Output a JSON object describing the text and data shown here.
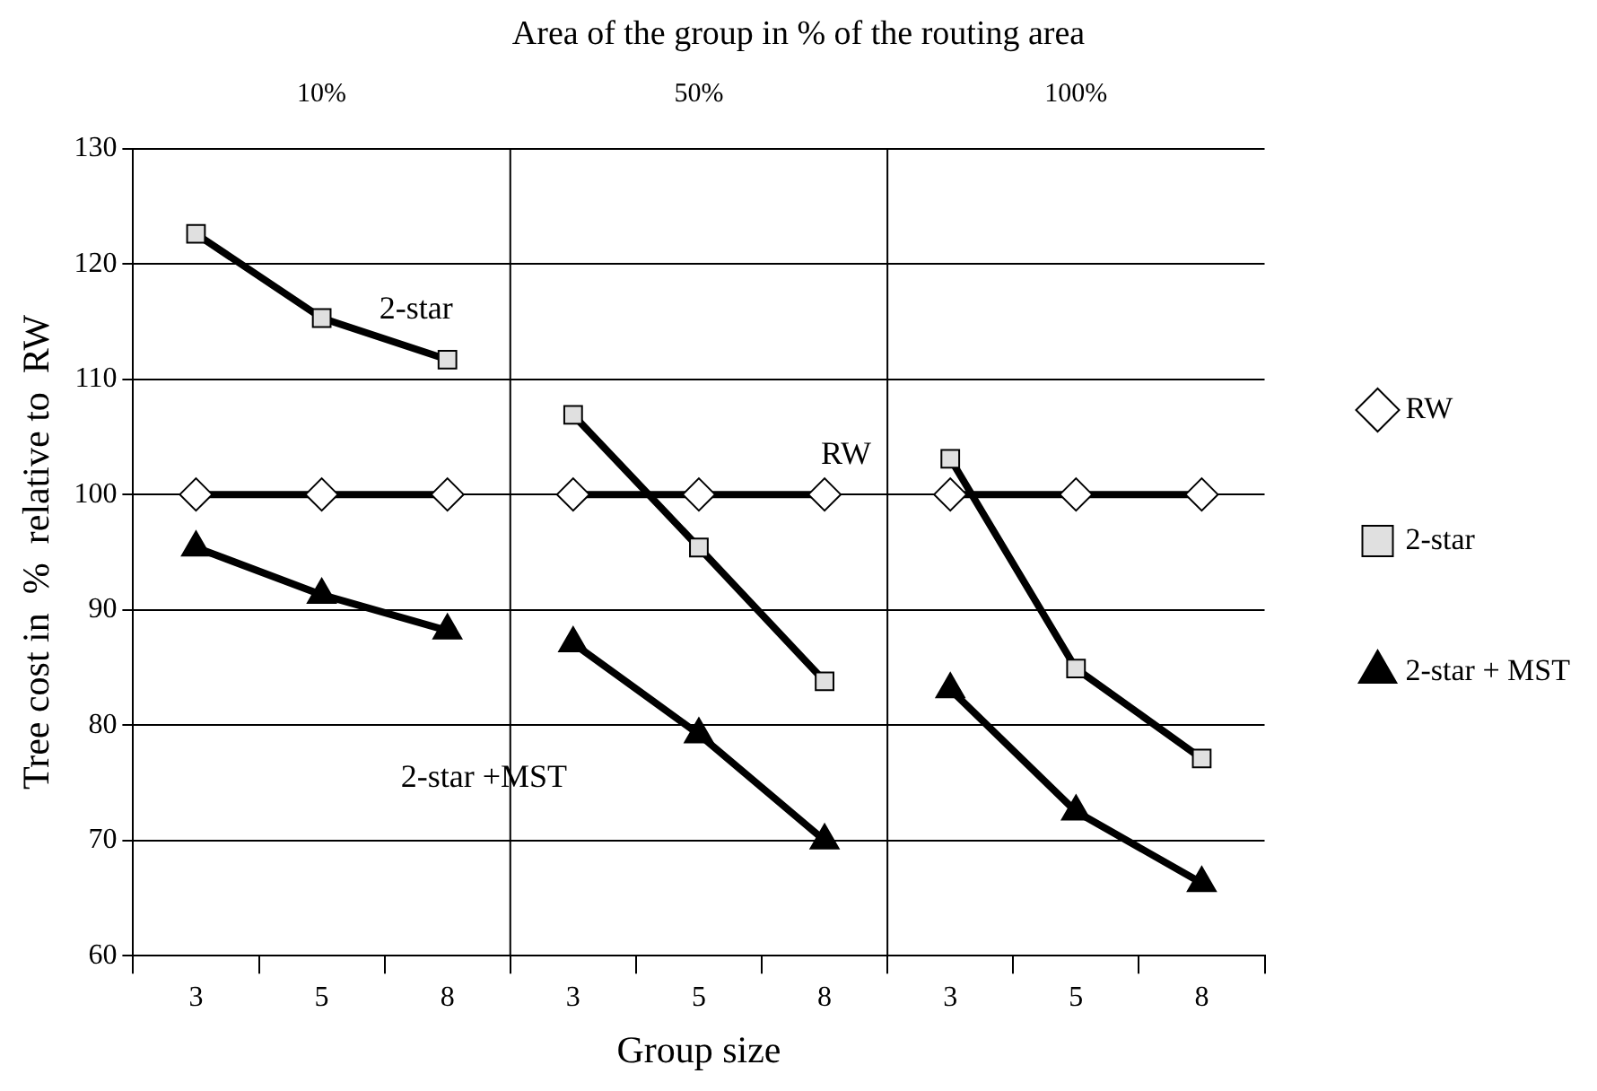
{
  "chart_data": {
    "type": "line",
    "title": "Area of the group in % of the routing area",
    "xlabel": "Group size",
    "ylabel": "Tree cost in  %  relative to  RW",
    "categories": [
      "3",
      "5",
      "8",
      "3",
      "5",
      "8",
      "3",
      "5",
      "8"
    ],
    "series": [
      {
        "name": "RW",
        "color": "#ffffff",
        "marker": "diamond",
        "values": [
          100,
          100,
          100,
          100,
          100,
          100,
          100,
          100,
          100
        ]
      },
      {
        "name": "2-star",
        "color": "#e0e0e0",
        "marker": "square",
        "values": [
          122.6,
          115.3,
          111.7,
          106.9,
          95.4,
          83.8,
          103.1,
          84.9,
          77.1
        ]
      },
      {
        "name": "2-star + MST",
        "color": "#000000",
        "marker": "triangle",
        "values": [
          95.4,
          91.3,
          88.2,
          87.1,
          79.2,
          70,
          83.1,
          72.5,
          66.3
        ]
      }
    ],
    "ylim": [
      60,
      130
    ],
    "yticks": [
      60,
      70,
      80,
      90,
      100,
      110,
      120,
      130
    ],
    "grid": "y",
    "legend": "right",
    "annotations": [
      "10%",
      "50%",
      "100%",
      "2-star",
      "RW",
      "2-star +MST"
    ]
  }
}
